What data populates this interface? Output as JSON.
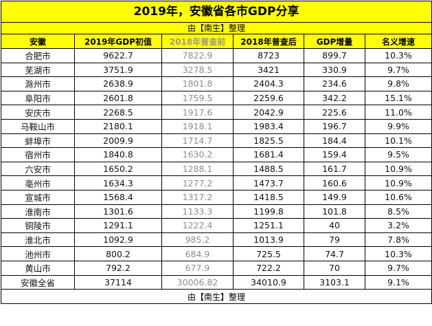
{
  "title": "2019年，安徽省各市GDP分享",
  "subtitle": "由【南生】整理",
  "footer": "由【南生】整理",
  "colors": {
    "header_bg": "#ffff00",
    "muted_text": "#8c8c8c",
    "grid": "#000000"
  },
  "table": {
    "columns": [
      "安徽",
      "2019年GDP初值",
      "2018年普查前",
      "2018年普查后",
      "GDP增量",
      "名义增速"
    ],
    "rows": [
      [
        "合肥市",
        "9622.7",
        "7822.9",
        "8723",
        "899.7",
        "10.3%"
      ],
      [
        "芜湖市",
        "3751.9",
        "3278.5",
        "3421",
        "330.9",
        "9.7%"
      ],
      [
        "滁州市",
        "2638.9",
        "1801.8",
        "2404.3",
        "234.6",
        "9.8%"
      ],
      [
        "阜阳市",
        "2601.8",
        "1759.5",
        "2259.6",
        "342.2",
        "15.1%"
      ],
      [
        "安庆市",
        "2268.5",
        "1917.6",
        "2042.9",
        "225.6",
        "11.0%"
      ],
      [
        "马鞍山市",
        "2180.1",
        "1918.1",
        "1983.4",
        "196.7",
        "9.9%"
      ],
      [
        "蚌埠市",
        "2009.9",
        "1714.7",
        "1825.5",
        "184.4",
        "10.1%"
      ],
      [
        "宿州市",
        "1840.8",
        "1630.2",
        "1681.4",
        "159.4",
        "9.5%"
      ],
      [
        "六安市",
        "1650.2",
        "1288.1",
        "1488.5",
        "161.7",
        "10.9%"
      ],
      [
        "亳州市",
        "1634.3",
        "1277.2",
        "1473.7",
        "160.6",
        "10.9%"
      ],
      [
        "宣城市",
        "1568.4",
        "1317.2",
        "1418.5",
        "149.9",
        "10.6%"
      ],
      [
        "淮南市",
        "1301.6",
        "1133.3",
        "1199.8",
        "101.8",
        "8.5%"
      ],
      [
        "铜陵市",
        "1291.1",
        "1222.4",
        "1251.1",
        "40",
        "3.2%"
      ],
      [
        "淮北市",
        "1092.9",
        "985.2",
        "1013.9",
        "79",
        "7.8%"
      ],
      [
        "池州市",
        "800.2",
        "684.9",
        "725.5",
        "74.7",
        "10.3%"
      ],
      [
        "黄山市",
        "792.2",
        "677.9",
        "722.2",
        "70",
        "9.7%"
      ],
      [
        "安徽全省",
        "37114",
        "30006.82",
        "34010.9",
        "3103.1",
        "9.1%"
      ]
    ]
  }
}
